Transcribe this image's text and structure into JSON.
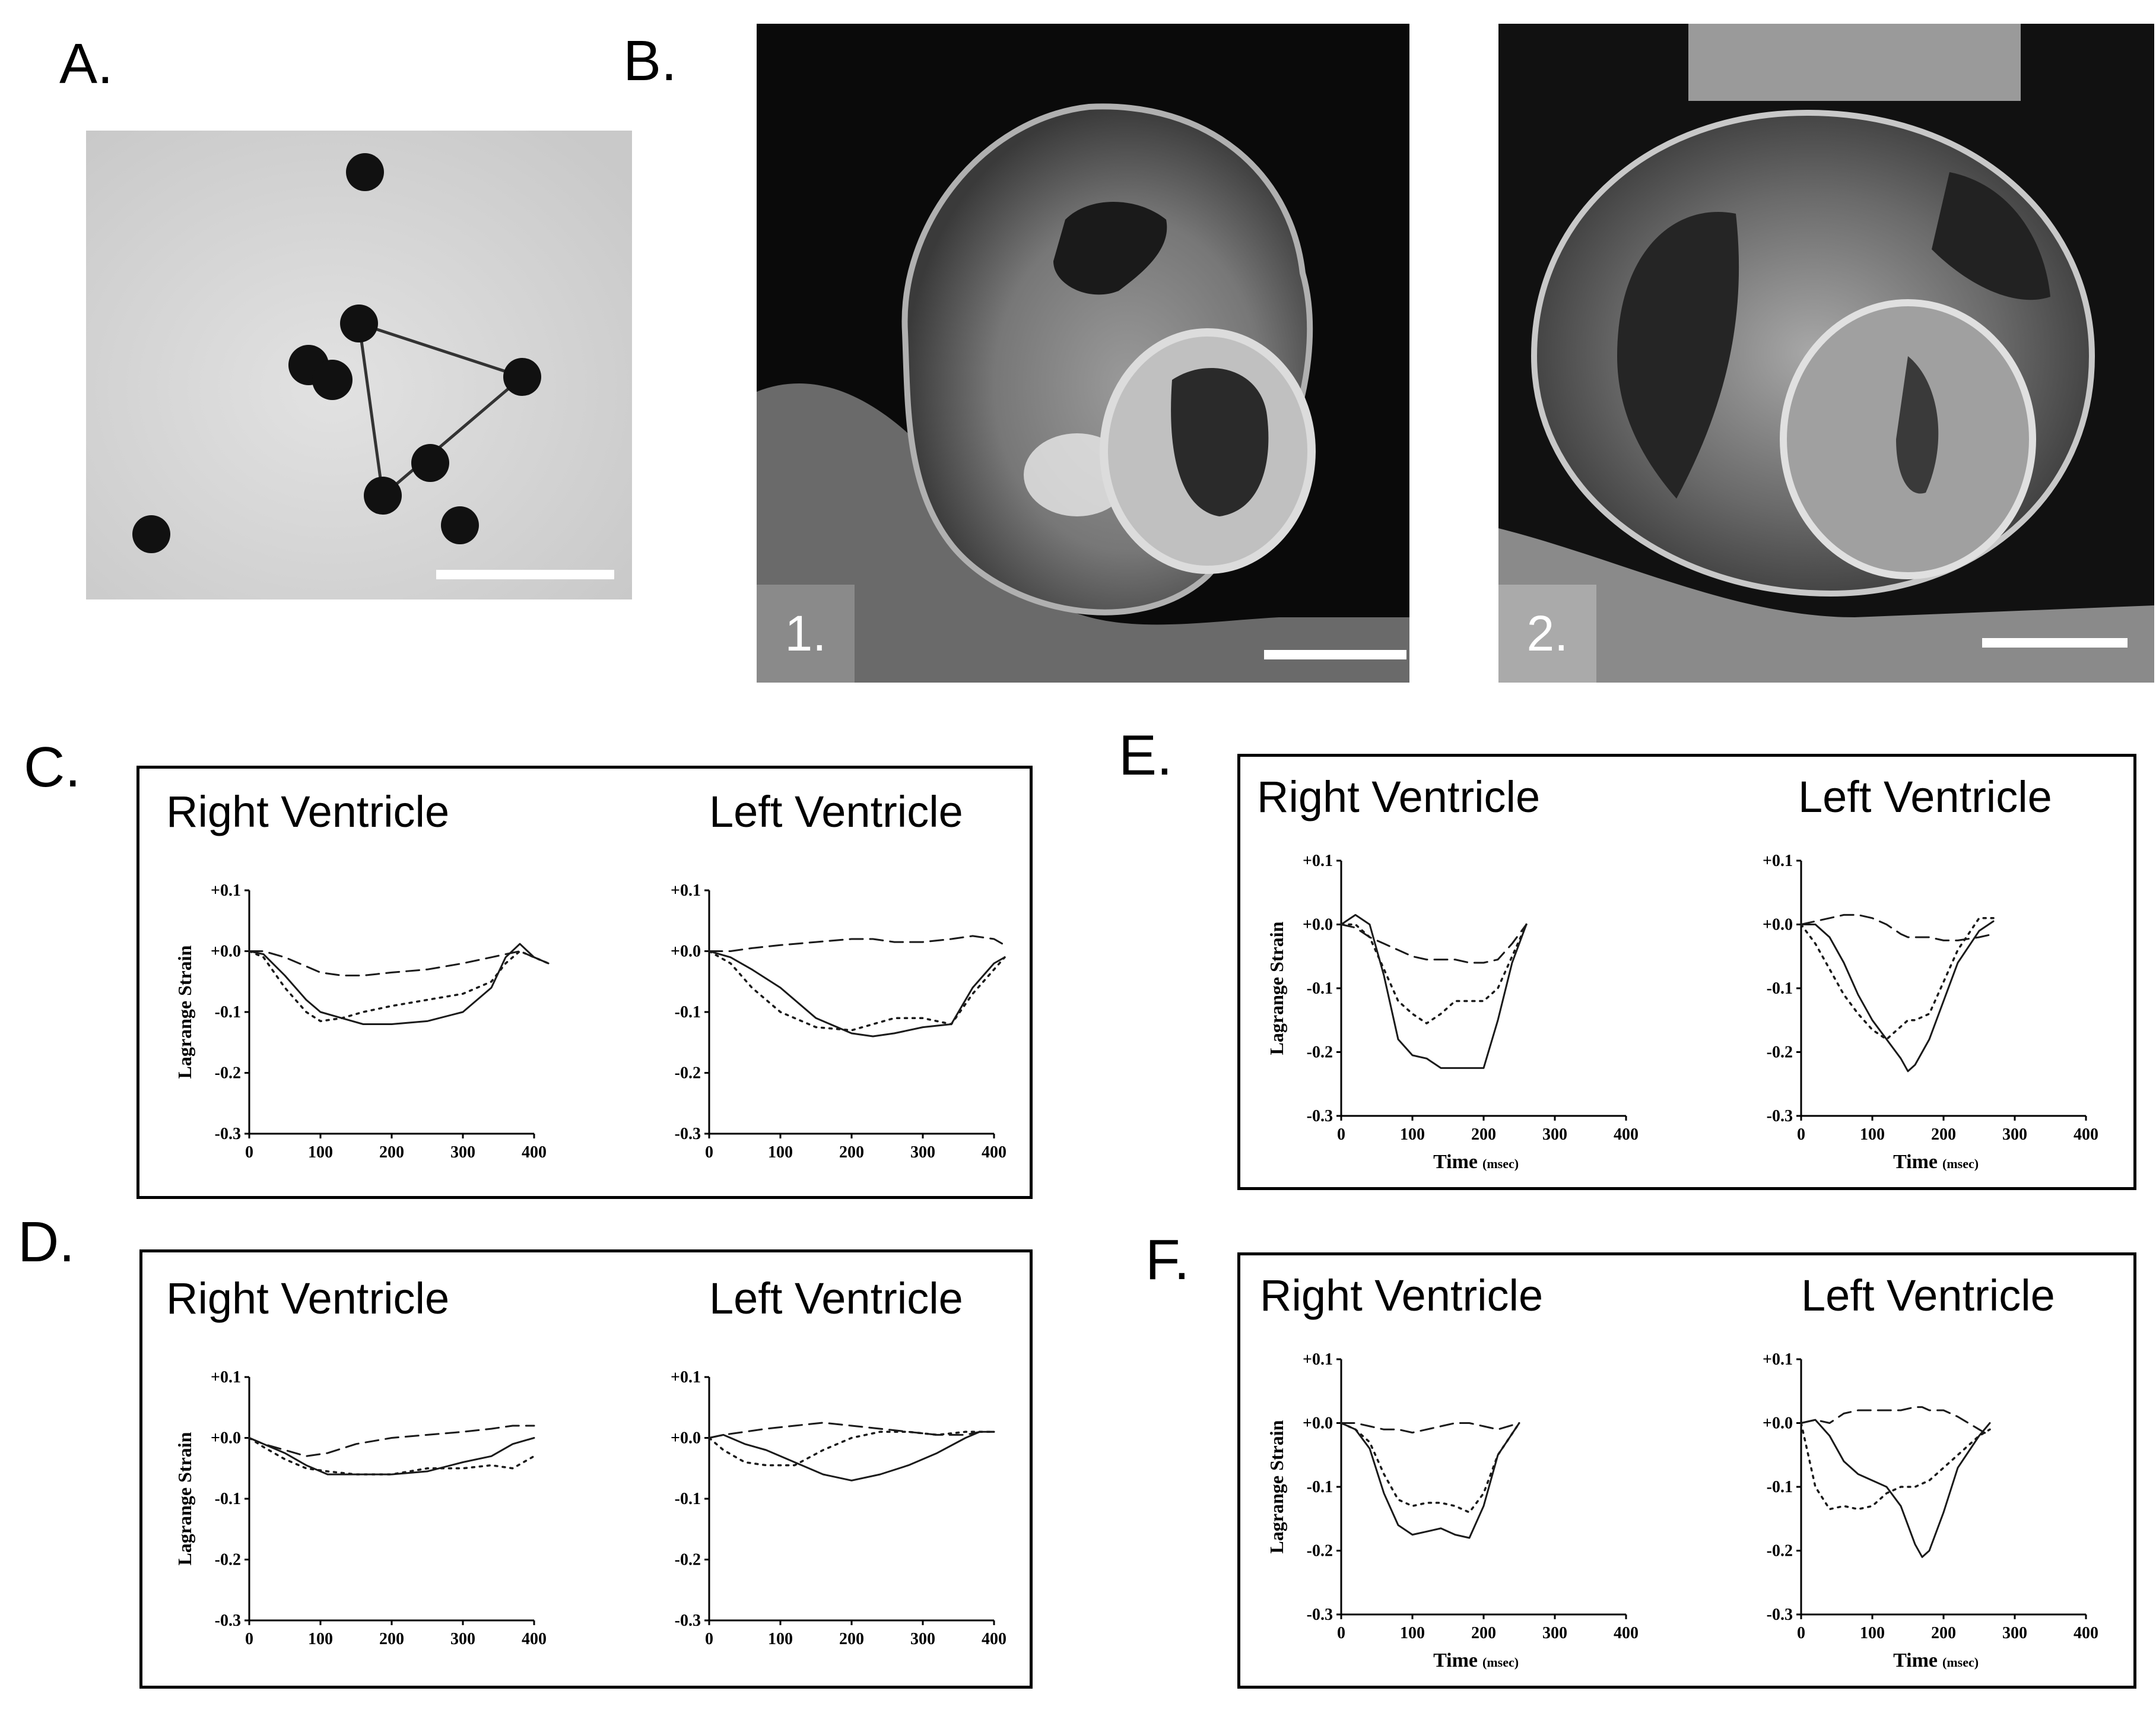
{
  "panels": {
    "A": {
      "label": "A."
    },
    "B": {
      "label": "B.",
      "images": [
        {
          "tag": "1."
        },
        {
          "tag": "2."
        }
      ]
    },
    "C": {
      "label": "C."
    },
    "D": {
      "label": "D."
    },
    "E": {
      "label": "E."
    },
    "F": {
      "label": "F."
    }
  },
  "plot_common": {
    "y_ticks": [
      "+0.1",
      "+0.0",
      "-0.1",
      "-0.2",
      "-0.3"
    ],
    "x_ticks": [
      "0",
      "100",
      "200",
      "300",
      "400"
    ],
    "ylabel": "Lagrange Strain",
    "xlabel_time": "Time",
    "xlabel_unit": "(msec)"
  },
  "chart_data": [
    {
      "panel": "C",
      "title": "Right Ventricle",
      "type": "line",
      "xlim": [
        0,
        400
      ],
      "ylim": [
        -0.3,
        0.1
      ],
      "series": [
        {
          "style": "solid",
          "x": [
            0,
            20,
            50,
            80,
            100,
            130,
            160,
            200,
            250,
            300,
            340,
            360,
            380,
            400,
            420
          ],
          "y": [
            0.0,
            -0.005,
            -0.04,
            -0.08,
            -0.1,
            -0.11,
            -0.12,
            -0.12,
            -0.115,
            -0.1,
            -0.06,
            -0.01,
            0.012,
            -0.01,
            -0.02
          ]
        },
        {
          "style": "dotted",
          "x": [
            0,
            20,
            50,
            80,
            100,
            130,
            160,
            200,
            250,
            300,
            340,
            360,
            380,
            400,
            420
          ],
          "y": [
            0.0,
            -0.01,
            -0.06,
            -0.1,
            -0.115,
            -0.11,
            -0.1,
            -0.09,
            -0.08,
            -0.07,
            -0.05,
            -0.02,
            0.0,
            -0.01,
            -0.02
          ]
        },
        {
          "style": "dashed",
          "x": [
            0,
            20,
            50,
            80,
            100,
            130,
            160,
            200,
            250,
            300,
            340,
            360,
            380,
            400,
            420
          ],
          "y": [
            0.0,
            0.0,
            -0.01,
            -0.025,
            -0.035,
            -0.04,
            -0.04,
            -0.035,
            -0.03,
            -0.02,
            -0.01,
            -0.005,
            0.0,
            -0.01,
            -0.02
          ]
        }
      ]
    },
    {
      "panel": "C",
      "title": "Left Ventricle",
      "type": "line",
      "xlim": [
        0,
        400
      ],
      "ylim": [
        -0.3,
        0.1
      ],
      "series": [
        {
          "style": "solid",
          "x": [
            0,
            30,
            60,
            100,
            150,
            200,
            230,
            260,
            300,
            340,
            370,
            400,
            415
          ],
          "y": [
            0.0,
            -0.01,
            -0.03,
            -0.06,
            -0.11,
            -0.135,
            -0.14,
            -0.135,
            -0.125,
            -0.12,
            -0.06,
            -0.02,
            -0.01
          ]
        },
        {
          "style": "dotted",
          "x": [
            0,
            30,
            60,
            100,
            150,
            200,
            230,
            260,
            300,
            340,
            370,
            400,
            415
          ],
          "y": [
            0.0,
            -0.02,
            -0.06,
            -0.1,
            -0.125,
            -0.13,
            -0.12,
            -0.11,
            -0.11,
            -0.12,
            -0.07,
            -0.03,
            -0.01
          ]
        },
        {
          "style": "dashed",
          "x": [
            0,
            30,
            60,
            100,
            150,
            200,
            230,
            260,
            300,
            340,
            370,
            400,
            415
          ],
          "y": [
            0.0,
            0.0,
            0.005,
            0.01,
            0.015,
            0.02,
            0.02,
            0.015,
            0.015,
            0.02,
            0.025,
            0.02,
            0.01
          ]
        }
      ]
    },
    {
      "panel": "D",
      "title": "Right Ventricle",
      "type": "line",
      "xlim": [
        0,
        400
      ],
      "ylim": [
        -0.3,
        0.1
      ],
      "series": [
        {
          "style": "solid",
          "x": [
            0,
            20,
            50,
            80,
            110,
            150,
            200,
            250,
            300,
            340,
            370,
            400
          ],
          "y": [
            0.0,
            -0.01,
            -0.025,
            -0.045,
            -0.06,
            -0.06,
            -0.06,
            -0.055,
            -0.04,
            -0.03,
            -0.01,
            0.0
          ]
        },
        {
          "style": "dotted",
          "x": [
            0,
            20,
            50,
            80,
            110,
            150,
            200,
            250,
            300,
            340,
            370,
            400
          ],
          "y": [
            0.0,
            -0.015,
            -0.035,
            -0.05,
            -0.055,
            -0.06,
            -0.06,
            -0.05,
            -0.05,
            -0.045,
            -0.05,
            -0.03
          ]
        },
        {
          "style": "dashed",
          "x": [
            0,
            20,
            50,
            80,
            110,
            150,
            200,
            250,
            300,
            340,
            370,
            400
          ],
          "y": [
            0.0,
            -0.01,
            -0.02,
            -0.03,
            -0.025,
            -0.01,
            0.0,
            0.005,
            0.01,
            0.015,
            0.02,
            0.02
          ]
        }
      ]
    },
    {
      "panel": "D",
      "title": "Left Ventricle",
      "type": "line",
      "xlim": [
        0,
        400
      ],
      "ylim": [
        -0.3,
        0.1
      ],
      "series": [
        {
          "style": "solid",
          "x": [
            0,
            20,
            50,
            80,
            120,
            160,
            200,
            240,
            280,
            320,
            360,
            380,
            400
          ],
          "y": [
            0.0,
            0.005,
            -0.01,
            -0.02,
            -0.04,
            -0.06,
            -0.07,
            -0.06,
            -0.045,
            -0.025,
            0.0,
            0.01,
            0.01
          ]
        },
        {
          "style": "dotted",
          "x": [
            0,
            20,
            50,
            80,
            120,
            160,
            200,
            240,
            280,
            320,
            360,
            380,
            400
          ],
          "y": [
            0.0,
            -0.02,
            -0.04,
            -0.045,
            -0.045,
            -0.02,
            0.0,
            0.01,
            0.01,
            0.005,
            0.01,
            0.01,
            0.01
          ]
        },
        {
          "style": "dashed",
          "x": [
            0,
            20,
            50,
            80,
            120,
            160,
            200,
            240,
            280,
            320,
            360,
            380,
            400
          ],
          "y": [
            0.0,
            0.005,
            0.01,
            0.015,
            0.02,
            0.025,
            0.02,
            0.015,
            0.01,
            0.005,
            0.005,
            0.01,
            0.01
          ]
        }
      ]
    },
    {
      "panel": "E",
      "title": "Right Ventricle",
      "type": "line",
      "xlim": [
        0,
        400
      ],
      "ylim": [
        -0.3,
        0.1
      ],
      "xlabel": "Time (msec)",
      "series": [
        {
          "style": "solid",
          "x": [
            0,
            20,
            40,
            60,
            80,
            100,
            120,
            140,
            160,
            180,
            200,
            220,
            240,
            260
          ],
          "y": [
            0.0,
            0.015,
            0.0,
            -0.08,
            -0.18,
            -0.205,
            -0.21,
            -0.225,
            -0.225,
            -0.225,
            -0.225,
            -0.15,
            -0.06,
            0.0
          ]
        },
        {
          "style": "dotted",
          "x": [
            0,
            20,
            40,
            60,
            80,
            100,
            120,
            140,
            160,
            180,
            200,
            220,
            240,
            260
          ],
          "y": [
            0.0,
            0.0,
            -0.02,
            -0.07,
            -0.12,
            -0.14,
            -0.155,
            -0.14,
            -0.12,
            -0.12,
            -0.12,
            -0.1,
            -0.05,
            0.0
          ]
        },
        {
          "style": "dashed",
          "x": [
            0,
            20,
            40,
            60,
            80,
            100,
            120,
            140,
            160,
            180,
            200,
            220,
            240,
            260
          ],
          "y": [
            0.0,
            -0.005,
            -0.02,
            -0.03,
            -0.04,
            -0.05,
            -0.055,
            -0.055,
            -0.055,
            -0.06,
            -0.06,
            -0.055,
            -0.03,
            0.0
          ]
        }
      ]
    },
    {
      "panel": "E",
      "title": "Left Ventricle",
      "type": "line",
      "xlim": [
        0,
        400
      ],
      "ylim": [
        -0.3,
        0.1
      ],
      "xlabel": "Time (msec)",
      "series": [
        {
          "style": "solid",
          "x": [
            0,
            20,
            40,
            60,
            80,
            100,
            120,
            140,
            150,
            160,
            180,
            200,
            220,
            250,
            270
          ],
          "y": [
            0.0,
            0.0,
            -0.02,
            -0.06,
            -0.11,
            -0.15,
            -0.18,
            -0.21,
            -0.23,
            -0.22,
            -0.18,
            -0.12,
            -0.06,
            -0.01,
            0.005
          ]
        },
        {
          "style": "dotted",
          "x": [
            0,
            20,
            40,
            60,
            80,
            100,
            120,
            140,
            150,
            160,
            180,
            200,
            220,
            250,
            270
          ],
          "y": [
            0.0,
            -0.03,
            -0.07,
            -0.11,
            -0.14,
            -0.165,
            -0.18,
            -0.16,
            -0.15,
            -0.15,
            -0.14,
            -0.09,
            -0.04,
            0.01,
            0.01
          ]
        },
        {
          "style": "dashed",
          "x": [
            0,
            20,
            40,
            60,
            80,
            100,
            120,
            140,
            150,
            160,
            180,
            200,
            220,
            250,
            270
          ],
          "y": [
            0.0,
            0.005,
            0.01,
            0.015,
            0.015,
            0.01,
            0.0,
            -0.015,
            -0.02,
            -0.02,
            -0.02,
            -0.025,
            -0.025,
            -0.02,
            -0.015
          ]
        }
      ]
    },
    {
      "panel": "F",
      "title": "Right Ventricle",
      "type": "line",
      "xlim": [
        0,
        400
      ],
      "ylim": [
        -0.3,
        0.1
      ],
      "xlabel": "Time (msec)",
      "series": [
        {
          "style": "solid",
          "x": [
            0,
            20,
            40,
            60,
            80,
            100,
            120,
            140,
            160,
            180,
            200,
            220,
            250
          ],
          "y": [
            0.0,
            -0.01,
            -0.04,
            -0.11,
            -0.16,
            -0.175,
            -0.17,
            -0.165,
            -0.175,
            -0.18,
            -0.13,
            -0.05,
            0.0
          ]
        },
        {
          "style": "dotted",
          "x": [
            0,
            20,
            40,
            60,
            80,
            100,
            120,
            140,
            160,
            180,
            200,
            220,
            250
          ],
          "y": [
            0.0,
            -0.01,
            -0.03,
            -0.08,
            -0.12,
            -0.13,
            -0.125,
            -0.125,
            -0.13,
            -0.14,
            -0.11,
            -0.05,
            0.0
          ]
        },
        {
          "style": "dashed",
          "x": [
            0,
            20,
            40,
            60,
            80,
            100,
            120,
            140,
            160,
            180,
            200,
            220,
            250
          ],
          "y": [
            0.0,
            0.0,
            -0.005,
            -0.01,
            -0.01,
            -0.015,
            -0.01,
            -0.005,
            0.0,
            0.0,
            -0.005,
            -0.01,
            0.0
          ]
        }
      ]
    },
    {
      "panel": "F",
      "title": "Left Ventricle",
      "type": "line",
      "xlim": [
        0,
        400
      ],
      "ylim": [
        -0.3,
        0.1
      ],
      "xlabel": "Time (msec)",
      "series": [
        {
          "style": "solid",
          "x": [
            0,
            20,
            40,
            60,
            80,
            100,
            120,
            140,
            160,
            170,
            180,
            200,
            220,
            250,
            265
          ],
          "y": [
            0.0,
            0.005,
            -0.02,
            -0.06,
            -0.08,
            -0.09,
            -0.1,
            -0.13,
            -0.19,
            -0.21,
            -0.2,
            -0.14,
            -0.07,
            -0.02,
            0.0
          ]
        },
        {
          "style": "dotted",
          "x": [
            0,
            20,
            40,
            60,
            80,
            100,
            120,
            140,
            160,
            170,
            180,
            200,
            220,
            250,
            265
          ],
          "y": [
            0.0,
            -0.1,
            -0.135,
            -0.13,
            -0.135,
            -0.13,
            -0.11,
            -0.1,
            -0.1,
            -0.095,
            -0.09,
            -0.07,
            -0.05,
            -0.02,
            -0.01
          ]
        },
        {
          "style": "dashed",
          "x": [
            0,
            20,
            40,
            60,
            80,
            100,
            120,
            140,
            160,
            170,
            180,
            200,
            220,
            250,
            265
          ],
          "y": [
            0.0,
            0.005,
            0.0,
            0.015,
            0.02,
            0.02,
            0.02,
            0.02,
            0.025,
            0.025,
            0.02,
            0.02,
            0.01,
            -0.01,
            -0.02
          ]
        }
      ]
    }
  ]
}
